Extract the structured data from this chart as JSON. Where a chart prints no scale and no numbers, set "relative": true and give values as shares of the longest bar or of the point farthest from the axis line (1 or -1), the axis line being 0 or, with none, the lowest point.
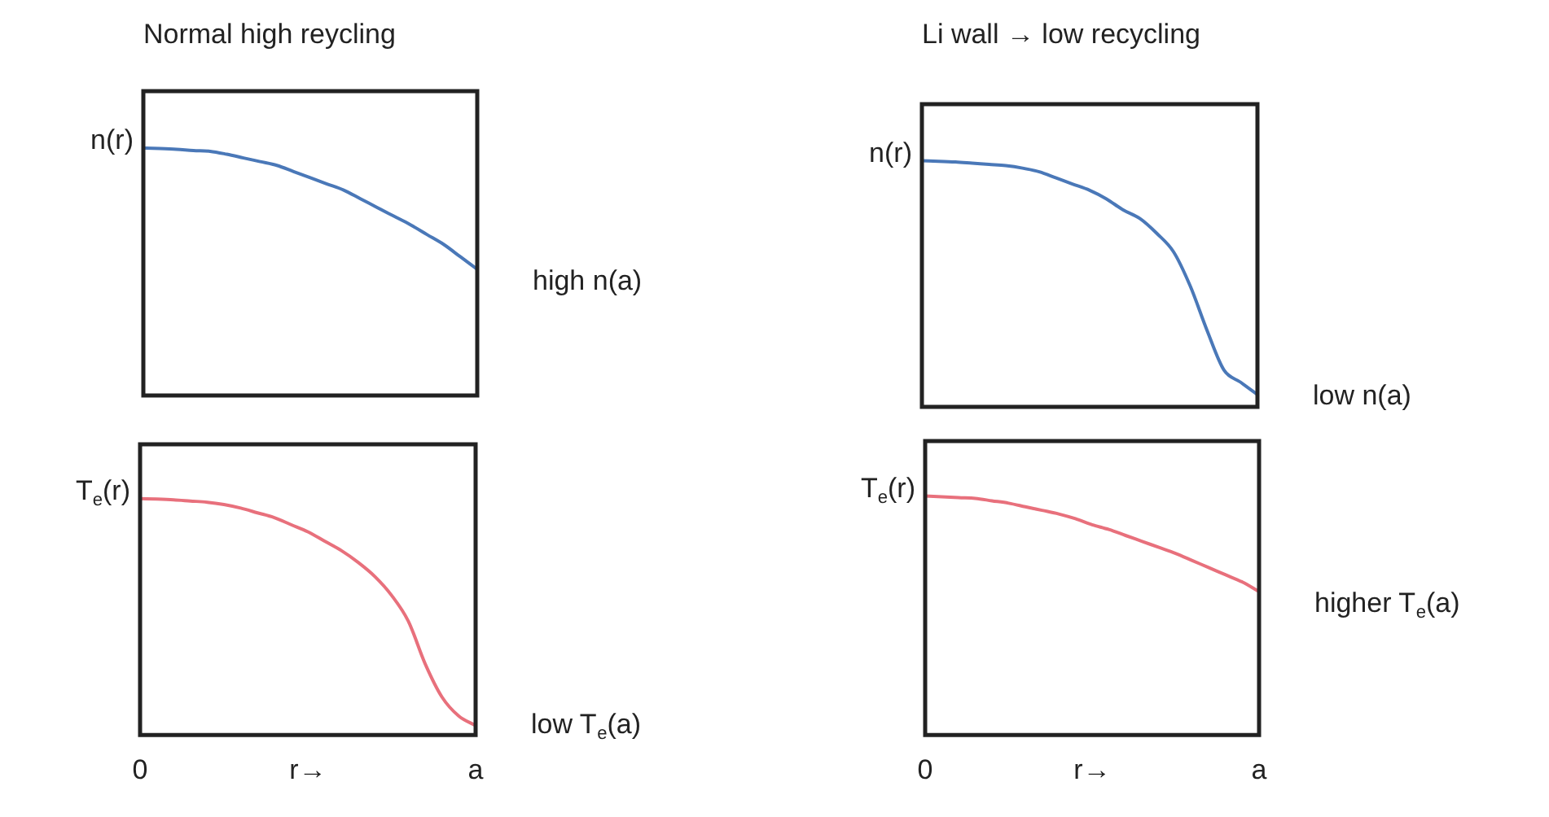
{
  "chart_data": [
    {
      "type": "line",
      "title": "Normal high reycling",
      "ylabel": "n(r)",
      "relative": true,
      "tick_labels": false,
      "categories": [
        null,
        null,
        null,
        null,
        null,
        null,
        null,
        null,
        null,
        null,
        null,
        null,
        null,
        null,
        null,
        null,
        null,
        null,
        null,
        null,
        null
      ],
      "series": [
        {
          "color": "#4a78b8",
          "values": [
            1,
            0.998,
            0.995,
            0.99,
            0.987,
            0.975,
            0.96,
            0.945,
            0.93,
            0.905,
            0.88,
            0.855,
            0.83,
            0.795,
            0.76,
            0.725,
            0.69,
            0.65,
            0.61,
            0.56,
            0.51
          ]
        }
      ],
      "annotations": [
        "high n(a)"
      ]
    },
    {
      "type": "line",
      "title": "Li wall → low recycling",
      "ylabel": "n(r)",
      "relative": true,
      "tick_labels": false,
      "categories": [
        null,
        null,
        null,
        null,
        null,
        null,
        null,
        null,
        null,
        null,
        null,
        null,
        null,
        null,
        null,
        null,
        null,
        null,
        null,
        null,
        null
      ],
      "series": [
        {
          "color": "#4a78b8",
          "values": [
            1,
            0.998,
            0.995,
            0.99,
            0.985,
            0.98,
            0.97,
            0.955,
            0.93,
            0.905,
            0.88,
            0.845,
            0.8,
            0.765,
            0.705,
            0.63,
            0.49,
            0.31,
            0.15,
            0.1,
            0.05
          ]
        }
      ],
      "annotations": [
        "low n(a)"
      ]
    },
    {
      "type": "line",
      "ylabel": "T$_{e}$(r)",
      "relative": true,
      "tick_labels": "x",
      "categories": [
        "0",
        null,
        null,
        null,
        null,
        null,
        null,
        null,
        null,
        null,
        "r→",
        null,
        null,
        null,
        null,
        null,
        null,
        null,
        null,
        null,
        "a"
      ],
      "series": [
        {
          "color": "#e8707c",
          "values": [
            1,
            0.998,
            0.995,
            0.99,
            0.985,
            0.975,
            0.96,
            0.94,
            0.92,
            0.89,
            0.86,
            0.82,
            0.78,
            0.73,
            0.67,
            0.59,
            0.48,
            0.3,
            0.16,
            0.08,
            0.04
          ]
        }
      ],
      "annotations": [
        "low T$_{e}$(a)"
      ]
    },
    {
      "type": "line",
      "ylabel": "T$_{e}$(r)",
      "relative": true,
      "tick_labels": "x",
      "categories": [
        "0",
        null,
        null,
        null,
        null,
        null,
        null,
        null,
        null,
        null,
        "r→",
        null,
        null,
        null,
        null,
        null,
        null,
        null,
        null,
        null,
        "a"
      ],
      "series": [
        {
          "color": "#e8707c",
          "values": [
            1,
            0.997,
            0.993,
            0.99,
            0.98,
            0.97,
            0.955,
            0.94,
            0.925,
            0.905,
            0.88,
            0.86,
            0.835,
            0.81,
            0.785,
            0.76,
            0.73,
            0.7,
            0.67,
            0.64,
            0.6
          ]
        }
      ],
      "annotations": [
        "higher T$_{e}$(a)"
      ]
    }
  ]
}
